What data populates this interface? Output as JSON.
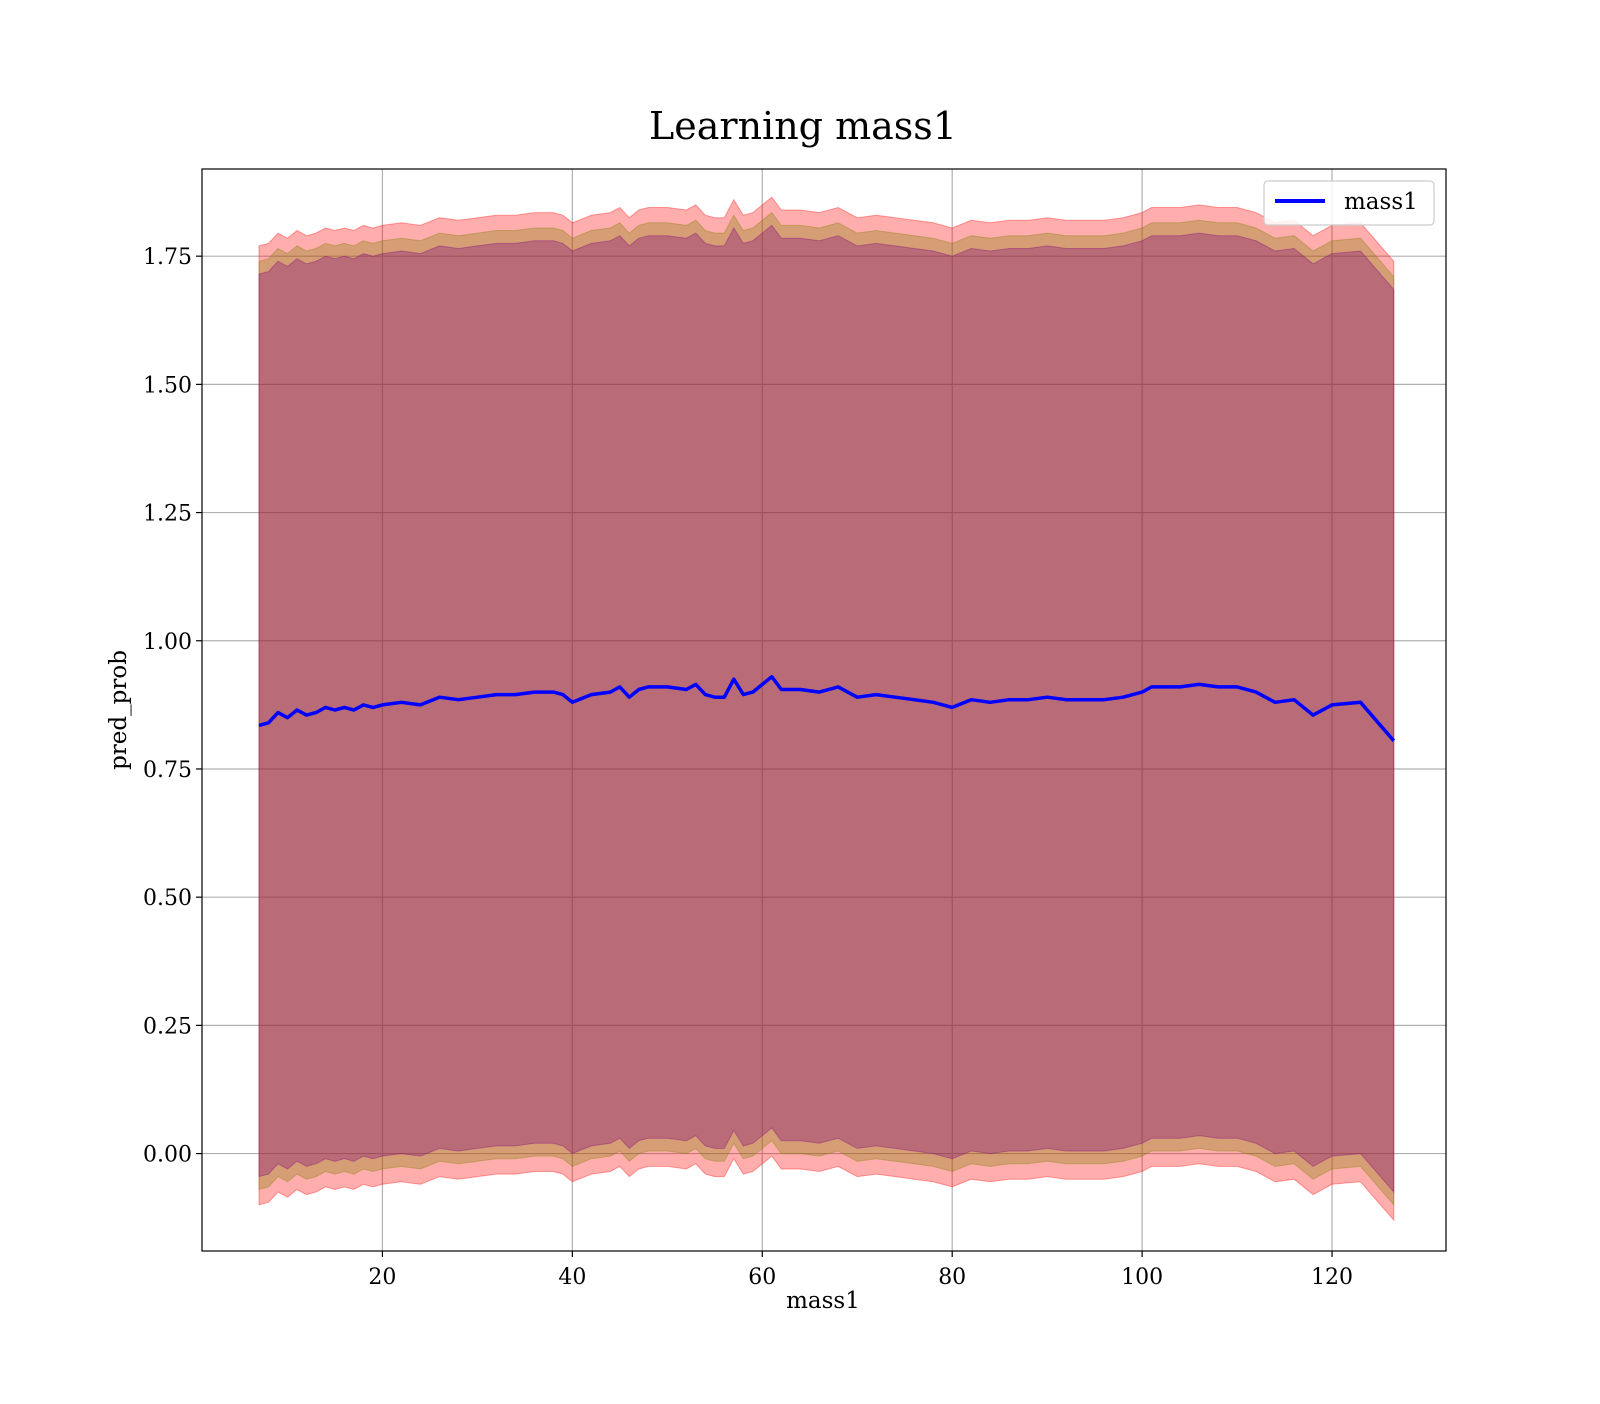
{
  "chart_data": {
    "type": "area",
    "title": "Learning mass1",
    "xlabel": "mass1",
    "ylabel": "pred_prob",
    "xlim": [
      1,
      132
    ],
    "ylim": [
      -0.19,
      1.92
    ],
    "x_ticks": [
      20,
      40,
      60,
      80,
      100,
      120
    ],
    "x_tick_labels": [
      "20",
      "40",
      "60",
      "80",
      "100",
      "120"
    ],
    "y_ticks": [
      0.0,
      0.25,
      0.5,
      0.75,
      1.0,
      1.25,
      1.5,
      1.75
    ],
    "y_tick_labels": [
      "0.00",
      "0.25",
      "0.50",
      "0.75",
      "1.00",
      "1.25",
      "1.50",
      "1.75"
    ],
    "grid": true,
    "legend_position": "top-right",
    "colors": {
      "line": "#0000ff",
      "band_outer": "#ff0000",
      "band_middle": "#808000",
      "band_inner": "#800080"
    },
    "x": [
      7,
      8,
      9,
      10,
      11,
      12,
      13,
      14,
      15,
      16,
      17,
      18,
      19,
      20,
      22,
      24,
      26,
      28,
      30,
      32,
      34,
      36,
      38,
      39,
      40,
      42,
      44,
      45,
      46,
      47,
      48,
      50,
      52,
      53,
      54,
      55,
      56,
      57,
      58,
      59,
      60,
      61,
      62,
      64,
      66,
      68,
      70,
      72,
      74,
      76,
      78,
      80,
      82,
      84,
      86,
      88,
      90,
      92,
      94,
      96,
      98,
      100,
      101,
      102,
      104,
      106,
      108,
      110,
      112,
      114,
      116,
      118,
      120,
      123,
      126.5
    ],
    "series": [
      {
        "name": "mass1",
        "values": [
          0.835,
          0.84,
          0.86,
          0.85,
          0.865,
          0.855,
          0.86,
          0.87,
          0.865,
          0.87,
          0.865,
          0.875,
          0.87,
          0.875,
          0.88,
          0.875,
          0.89,
          0.885,
          0.89,
          0.895,
          0.895,
          0.9,
          0.9,
          0.895,
          0.88,
          0.895,
          0.9,
          0.91,
          0.89,
          0.905,
          0.91,
          0.91,
          0.905,
          0.915,
          0.895,
          0.89,
          0.89,
          0.925,
          0.895,
          0.9,
          0.915,
          0.93,
          0.905,
          0.905,
          0.9,
          0.91,
          0.89,
          0.895,
          0.89,
          0.885,
          0.88,
          0.87,
          0.885,
          0.88,
          0.885,
          0.885,
          0.89,
          0.885,
          0.885,
          0.885,
          0.89,
          0.9,
          0.91,
          0.91,
          0.91,
          0.915,
          0.91,
          0.91,
          0.9,
          0.88,
          0.885,
          0.855,
          0.875,
          0.88,
          0.805
        ]
      }
    ],
    "bands": [
      {
        "color": "#ff0000",
        "offset": 0.935
      },
      {
        "color": "#808000",
        "offset": 0.905
      },
      {
        "color": "#800080",
        "offset": 0.88
      }
    ]
  },
  "legend": {
    "label": "mass1"
  }
}
